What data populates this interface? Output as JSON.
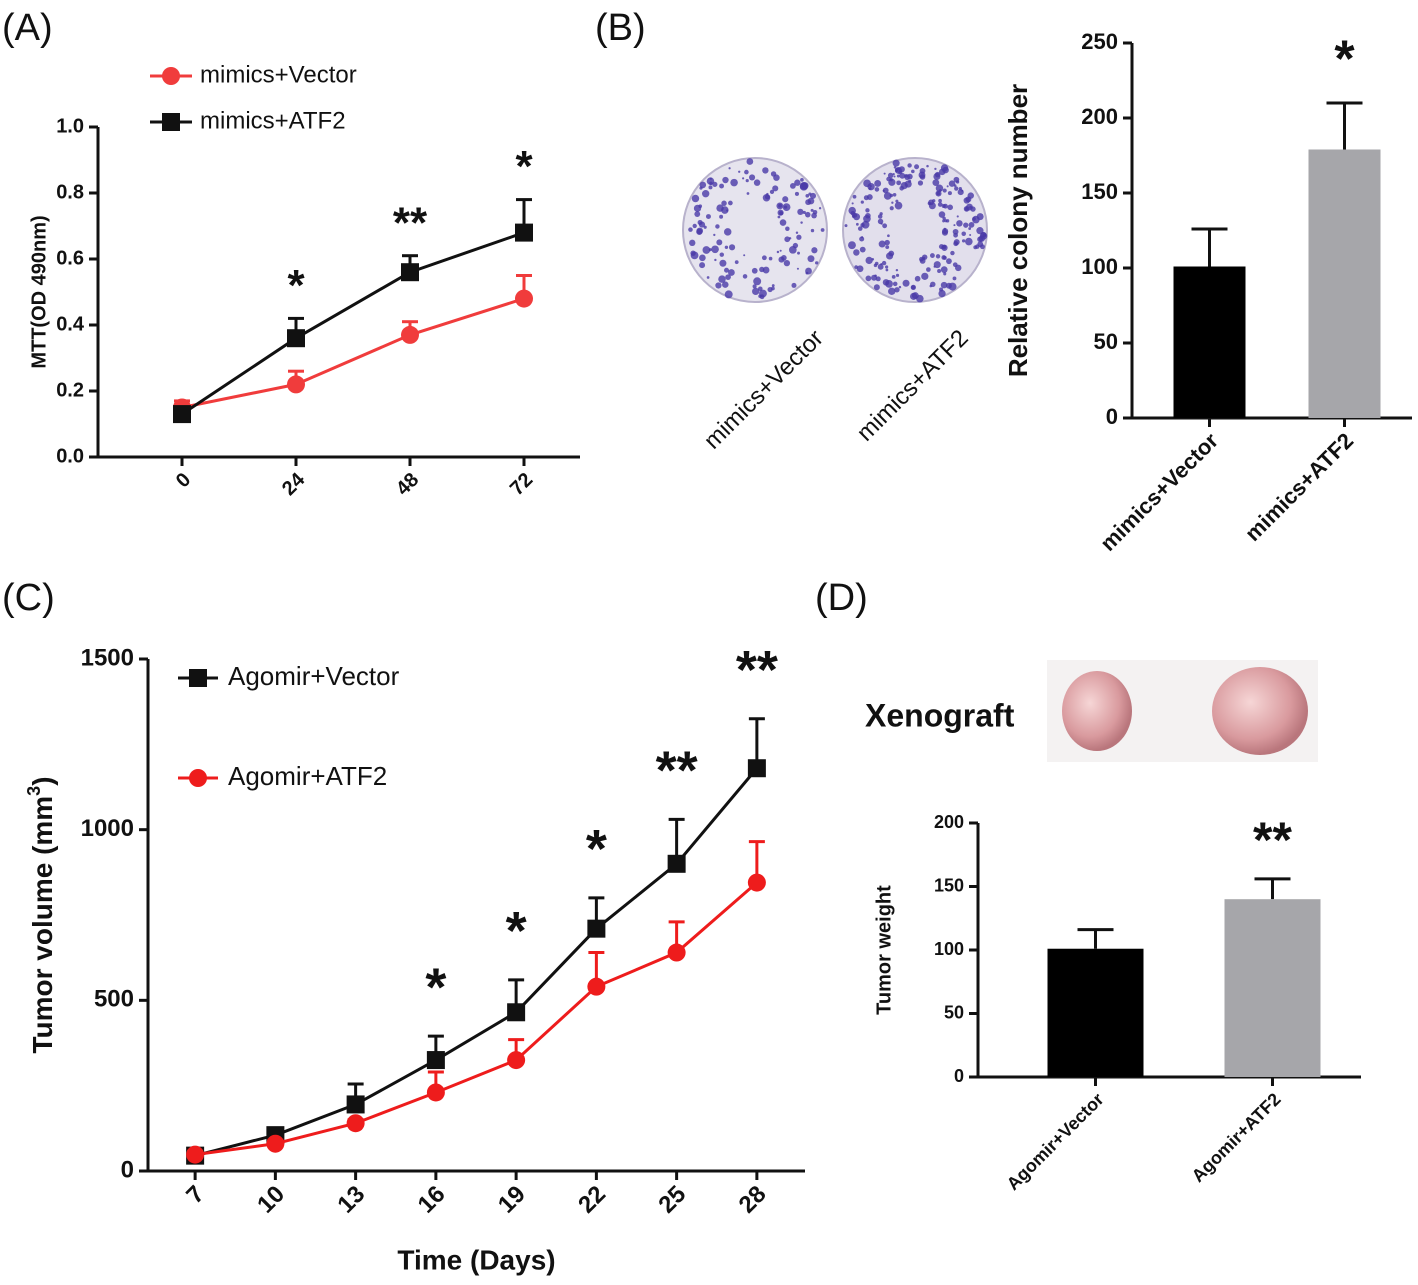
{
  "chart_data": [
    {
      "type": "line",
      "panel_label": "(A)",
      "y_label": "MTT(OD 490nm)",
      "categories": [
        "0",
        "24",
        "48",
        "72"
      ],
      "ylim": [
        0,
        1.0
      ],
      "yticks": [
        {
          "value": 0,
          "label": "0.0"
        },
        0.2,
        0.4,
        0.6,
        0.8,
        {
          "value": 1.0,
          "label": "1.0"
        }
      ],
      "series": [
        {
          "name": "mimics+Vector",
          "color": "#f03c3c",
          "marker": "circle",
          "values": [
            0.15,
            0.22,
            0.37,
            0.48
          ],
          "errors": [
            0.02,
            0.04,
            0.04,
            0.07
          ]
        },
        {
          "name": "mimics+ATF2",
          "color": "#111111",
          "marker": "square",
          "values": [
            0.13,
            0.36,
            0.56,
            0.68
          ],
          "errors": [
            0.01,
            0.06,
            0.05,
            0.1
          ]
        }
      ],
      "annotations": [
        {
          "text": "*",
          "x": "24"
        },
        {
          "text": "**",
          "x": "48"
        },
        {
          "text": "*",
          "x": "72"
        }
      ]
    },
    {
      "type": "bar",
      "panel_label": "(B)",
      "y_label": "Relative colony number",
      "image_labels": [
        "mimics+Vector",
        "mimics+ATF2"
      ],
      "categories": [
        "mimics+Vector",
        "mimics+ATF2"
      ],
      "values": [
        101,
        179
      ],
      "errors": [
        25,
        31
      ],
      "colors": [
        "#000000",
        "#a6a6aa"
      ],
      "ylim": [
        0,
        250
      ],
      "yticks": [
        0,
        50,
        100,
        150,
        200,
        250
      ],
      "annotations": [
        {
          "text": "*",
          "x": "mimics+ATF2"
        }
      ]
    },
    {
      "type": "line",
      "panel_label": "(C)",
      "y_label": [
        "Tumor volume (mm",
        "3",
        ")"
      ],
      "x_label": "Time (Days)",
      "categories": [
        "7",
        "10",
        "13",
        "16",
        "19",
        "22",
        "25",
        "28"
      ],
      "ylim": [
        0,
        1500
      ],
      "yticks": [
        0,
        500,
        1000,
        1500
      ],
      "series": [
        {
          "name": "Agomir+Vector",
          "color": "#111111",
          "marker": "square",
          "values": [
            45,
            105,
            195,
            325,
            465,
            710,
            900,
            1180
          ],
          "errors": [
            15,
            15,
            60,
            70,
            95,
            90,
            130,
            145
          ]
        },
        {
          "name": "Agomir+ATF2",
          "color": "#ee1c1c",
          "marker": "circle",
          "values": [
            48,
            80,
            140,
            230,
            325,
            540,
            640,
            845
          ],
          "errors": [
            10,
            10,
            10,
            60,
            60,
            100,
            90,
            120
          ]
        }
      ],
      "annotations": [
        {
          "text": "*",
          "x": "16"
        },
        {
          "text": "*",
          "x": "19"
        },
        {
          "text": "*",
          "x": "22"
        },
        {
          "text": "**",
          "x": "25"
        },
        {
          "text": "**",
          "x": "28"
        }
      ]
    },
    {
      "type": "bar",
      "panel_label": "(D)",
      "y_label": "Tumor weight",
      "image_title": "Xenograft",
      "categories": [
        "Agomir+Vector",
        "Agomir+ATF2"
      ],
      "values": [
        101,
        140
      ],
      "errors": [
        15,
        16
      ],
      "colors": [
        "#000000",
        "#a6a6aa"
      ],
      "ylim": [
        0,
        200
      ],
      "yticks": [
        0,
        50,
        100,
        150,
        200
      ],
      "annotations": [
        {
          "text": "**",
          "x": "Agomir+ATF2"
        }
      ]
    }
  ]
}
